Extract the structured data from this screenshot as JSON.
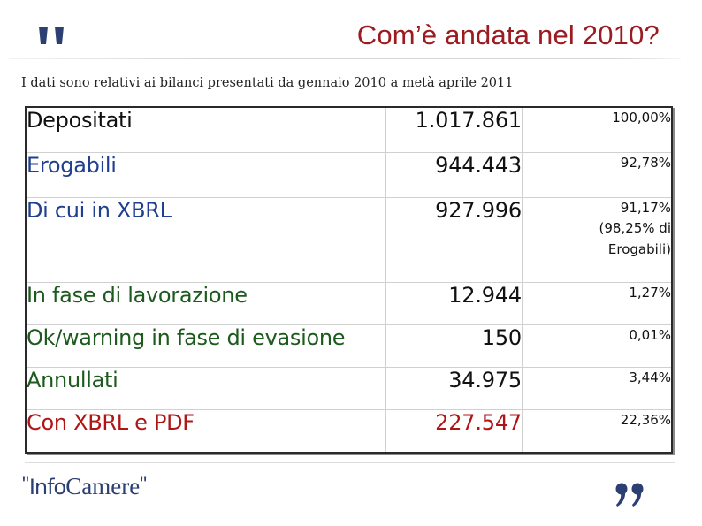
{
  "slide": {
    "title": "Com’è andata nel 2010?",
    "subtitle": "I dati sono relativi ai bilanci presentati da gennaio 2010 a metà aprile 2011"
  },
  "rows": [
    {
      "label": "Depositati",
      "value": "1.017.861",
      "percent": "100,00%",
      "color": "#111111"
    },
    {
      "label": "Erogabili",
      "value": "944.443",
      "percent": "92,78%",
      "color": "#1f3f8f"
    },
    {
      "label": "Di cui in XBRL",
      "value": "927.996",
      "percent": "91,17%",
      "percent_note_1": "(98,25% di",
      "percent_note_2": "Erogabili)",
      "color": "#1f3f8f"
    },
    {
      "label": "In fase di lavorazione",
      "value": "12.944",
      "percent": "1,27%",
      "color": "#1d5a1d"
    },
    {
      "label": "Ok/warning in fase di evasione",
      "value": "150",
      "percent": "0,01%",
      "color": "#1d5a1d"
    },
    {
      "label": "Annullati",
      "value": "34.975",
      "percent": "3,44%",
      "color": "#1d5a1d"
    },
    {
      "label": "Con XBRL e PDF",
      "value": "227.547",
      "percent": "22,36%",
      "color": "#b01515"
    }
  ],
  "footer": {
    "logo_quote_open": "\"",
    "logo_part1": "Info",
    "logo_part2": "Camere",
    "logo_quote_close": "\""
  },
  "colors": {
    "title": "#9b1b20",
    "quotes": "#2b3f73",
    "black": "#111111",
    "blue": "#1f3f8f",
    "green": "#1d5a1d",
    "red": "#b01515"
  },
  "icons": [
    "quote-open-icon",
    "quote-close-icon"
  ]
}
